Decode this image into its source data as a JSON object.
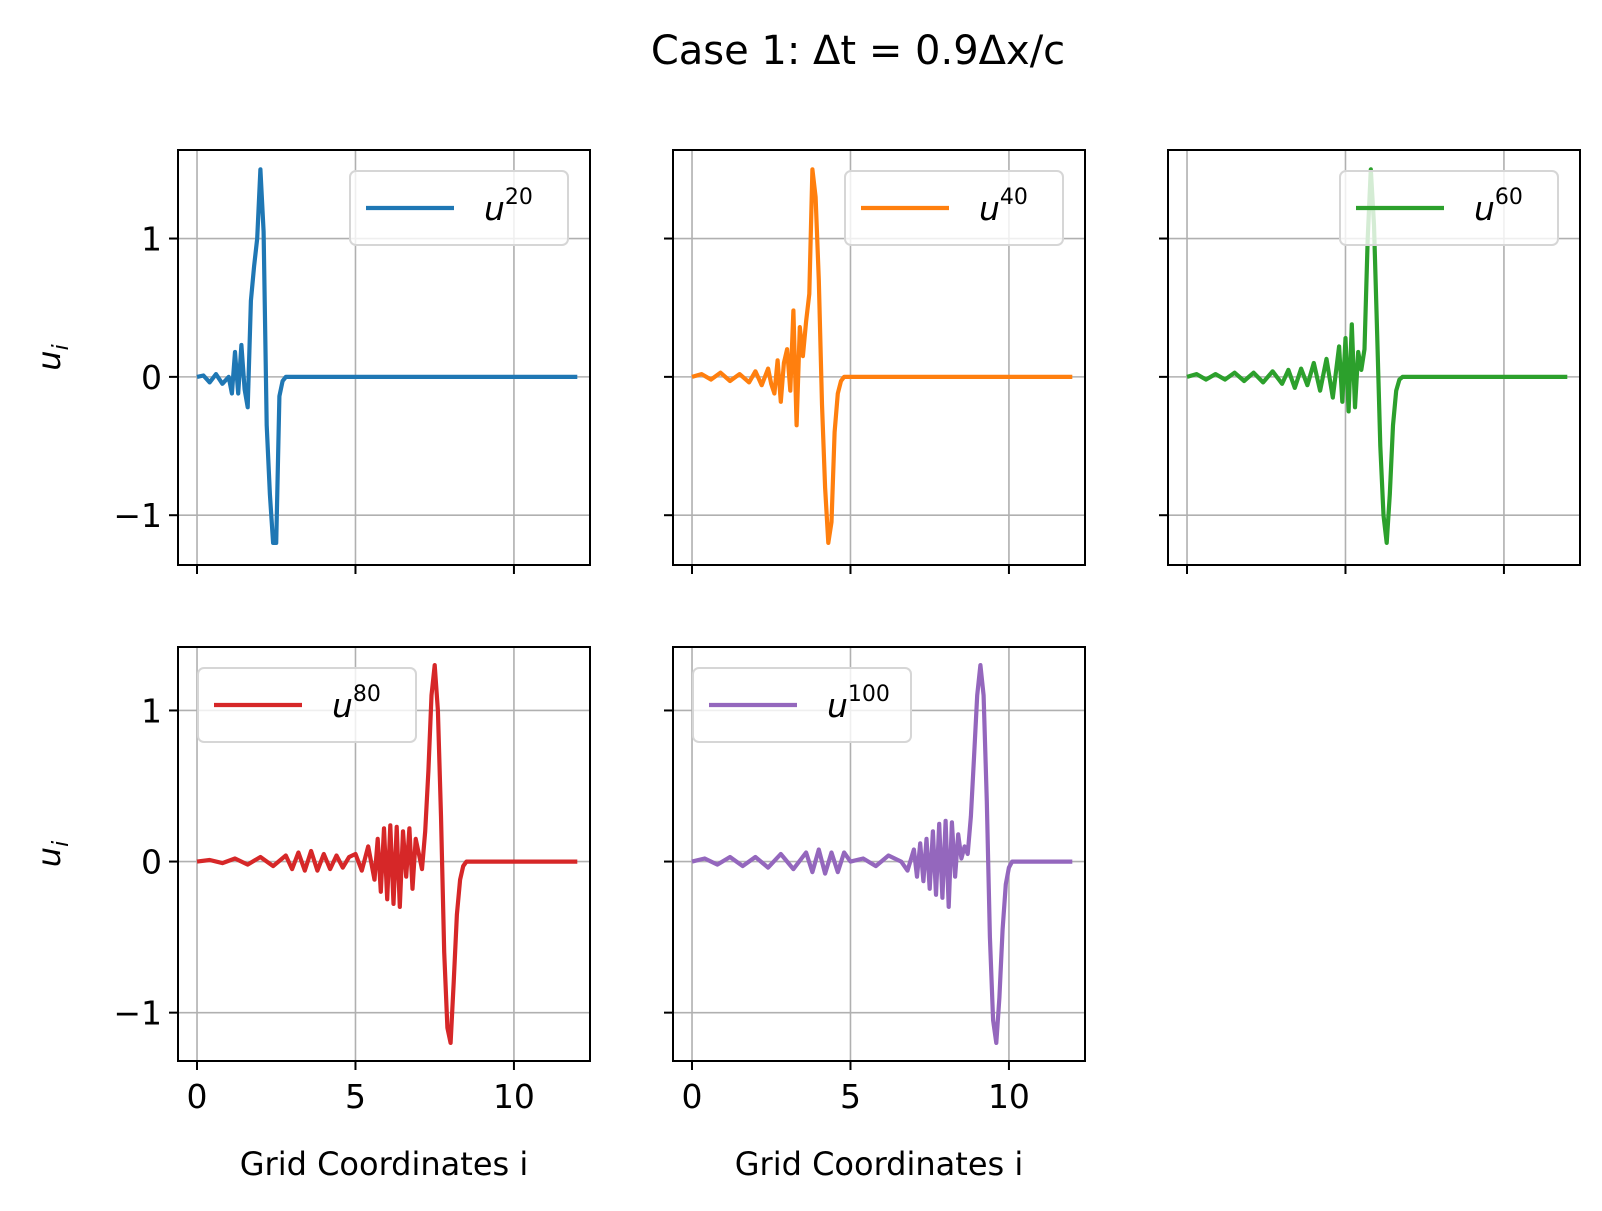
{
  "figure": {
    "title": "Case 1: Δt = 0.9Δx/c"
  },
  "chart_data": [
    {
      "type": "line",
      "legend": "u20",
      "legend_base": "u",
      "legend_sup": "20",
      "legend_loc": "top-right",
      "color": "#1f77b4",
      "ylabel": "u_i",
      "xlabel": "",
      "xlim": [
        -0.6,
        12.4
      ],
      "ylim": [
        -1.36,
        1.64
      ],
      "xticks": [
        0,
        5,
        10
      ],
      "yticks": [
        -1,
        0,
        1
      ],
      "show_xticklabels": false,
      "show_yticklabels": true,
      "grid": true,
      "x": [
        0,
        0.2,
        0.4,
        0.6,
        0.8,
        1.0,
        1.1,
        1.2,
        1.3,
        1.4,
        1.5,
        1.6,
        1.7,
        1.8,
        1.9,
        2.0,
        2.1,
        2.2,
        2.3,
        2.4,
        2.5,
        2.6,
        2.7,
        2.8,
        2.9,
        3.0,
        12.0
      ],
      "values": [
        0,
        0.01,
        -0.04,
        0.02,
        -0.05,
        0.0,
        -0.12,
        0.18,
        -0.12,
        0.23,
        -0.09,
        -0.22,
        0.55,
        0.8,
        1.0,
        1.5,
        1.05,
        -0.35,
        -0.85,
        -1.2,
        -1.2,
        -0.14,
        -0.03,
        0,
        0,
        0,
        0
      ]
    },
    {
      "type": "line",
      "legend": "u40",
      "legend_base": "u",
      "legend_sup": "40",
      "legend_loc": "top-right",
      "color": "#ff7f0e",
      "ylabel": "",
      "xlabel": "",
      "xlim": [
        -0.6,
        12.4
      ],
      "ylim": [
        -1.36,
        1.64
      ],
      "xticks": [
        0,
        5,
        10
      ],
      "yticks": [
        -1,
        0,
        1
      ],
      "show_xticklabels": false,
      "show_yticklabels": false,
      "grid": true,
      "x": [
        0,
        0.3,
        0.6,
        0.9,
        1.2,
        1.5,
        1.8,
        2.0,
        2.2,
        2.4,
        2.5,
        2.6,
        2.7,
        2.8,
        2.9,
        3.0,
        3.1,
        3.2,
        3.3,
        3.4,
        3.5,
        3.6,
        3.7,
        3.8,
        3.9,
        4.0,
        4.1,
        4.2,
        4.3,
        4.4,
        4.5,
        4.6,
        4.7,
        4.8,
        4.9,
        5.0,
        5.2,
        12.0
      ],
      "values": [
        0,
        0.02,
        -0.02,
        0.03,
        -0.03,
        0.02,
        -0.04,
        0.04,
        -0.06,
        0.06,
        -0.05,
        -0.12,
        0.12,
        -0.18,
        0.1,
        0.2,
        -0.1,
        0.48,
        -0.35,
        0.36,
        0.15,
        0.4,
        0.6,
        1.5,
        1.3,
        0.7,
        -0.2,
        -0.8,
        -1.2,
        -1.05,
        -0.4,
        -0.12,
        -0.03,
        0,
        0,
        0,
        0,
        0
      ]
    },
    {
      "type": "line",
      "legend": "u60",
      "legend_base": "u",
      "legend_sup": "60",
      "legend_loc": "top-right",
      "color": "#2ca02c",
      "ylabel": "",
      "xlabel": "",
      "xlim": [
        -0.6,
        12.4
      ],
      "ylim": [
        -1.36,
        1.64
      ],
      "xticks": [
        0,
        5,
        10
      ],
      "yticks": [
        -1,
        0,
        1
      ],
      "show_xticklabels": false,
      "show_yticklabels": false,
      "grid": true,
      "x": [
        0,
        0.3,
        0.6,
        0.9,
        1.2,
        1.5,
        1.8,
        2.1,
        2.4,
        2.7,
        3.0,
        3.2,
        3.4,
        3.6,
        3.8,
        4.0,
        4.2,
        4.4,
        4.6,
        4.8,
        4.9,
        5.0,
        5.1,
        5.2,
        5.3,
        5.4,
        5.5,
        5.6,
        5.7,
        5.8,
        5.9,
        6.0,
        6.1,
        6.2,
        6.3,
        6.4,
        6.5,
        6.6,
        6.7,
        6.8,
        6.9,
        7.0,
        7.2,
        12.0
      ],
      "values": [
        0,
        0.02,
        -0.02,
        0.02,
        -0.02,
        0.03,
        -0.03,
        0.03,
        -0.04,
        0.04,
        -0.05,
        0.05,
        -0.08,
        0.06,
        -0.06,
        0.1,
        -0.1,
        0.13,
        -0.15,
        0.22,
        -0.18,
        0.28,
        -0.25,
        0.38,
        -0.22,
        0.18,
        0.05,
        0.2,
        1.0,
        1.5,
        1.1,
        0.3,
        -0.5,
        -1.0,
        -1.2,
        -0.85,
        -0.35,
        -0.1,
        -0.02,
        0,
        0,
        0,
        0,
        0
      ]
    },
    {
      "type": "line",
      "legend": "u80",
      "legend_base": "u",
      "legend_sup": "80",
      "legend_loc": "top-left",
      "color": "#d62728",
      "ylabel": "u_i",
      "xlabel": "Grid Coordinates i",
      "xlim": [
        -0.6,
        12.4
      ],
      "ylim": [
        -1.32,
        1.42
      ],
      "xticks": [
        0,
        5,
        10
      ],
      "yticks": [
        -1,
        0,
        1
      ],
      "show_xticklabels": true,
      "show_yticklabels": true,
      "grid": true,
      "x": [
        0,
        0.4,
        0.8,
        1.2,
        1.6,
        2.0,
        2.4,
        2.8,
        3.0,
        3.2,
        3.4,
        3.6,
        3.8,
        4.0,
        4.2,
        4.4,
        4.6,
        4.8,
        5.0,
        5.2,
        5.4,
        5.6,
        5.7,
        5.8,
        5.9,
        6.0,
        6.1,
        6.2,
        6.3,
        6.4,
        6.5,
        6.6,
        6.7,
        6.8,
        6.9,
        7.0,
        7.1,
        7.2,
        7.3,
        7.4,
        7.5,
        7.6,
        7.7,
        7.8,
        7.9,
        8.0,
        8.1,
        8.2,
        8.3,
        8.4,
        8.5,
        8.7,
        12.0
      ],
      "values": [
        0,
        0.01,
        -0.01,
        0.02,
        -0.02,
        0.03,
        -0.03,
        0.04,
        -0.05,
        0.06,
        -0.06,
        0.07,
        -0.06,
        0.05,
        -0.05,
        0.04,
        -0.04,
        0.03,
        0.05,
        -0.06,
        0.1,
        -0.12,
        0.15,
        -0.2,
        0.22,
        -0.25,
        0.24,
        -0.28,
        0.23,
        -0.3,
        0.2,
        -0.1,
        0.22,
        -0.18,
        0.15,
        0.05,
        -0.05,
        0.2,
        0.6,
        1.1,
        1.3,
        1.0,
        0.3,
        -0.6,
        -1.1,
        -1.2,
        -0.8,
        -0.35,
        -0.12,
        -0.03,
        0,
        0,
        0
      ]
    },
    {
      "type": "line",
      "legend": "u100",
      "legend_base": "u",
      "legend_sup": "100",
      "legend_loc": "top-left",
      "color": "#9467bd",
      "ylabel": "",
      "xlabel": "Grid Coordinates i",
      "xlim": [
        -0.6,
        12.4
      ],
      "ylim": [
        -1.32,
        1.42
      ],
      "xticks": [
        0,
        5,
        10
      ],
      "yticks": [
        -1,
        0,
        1
      ],
      "show_xticklabels": true,
      "show_yticklabels": false,
      "grid": true,
      "x": [
        0,
        0.4,
        0.8,
        1.2,
        1.6,
        2.0,
        2.4,
        2.8,
        3.2,
        3.6,
        3.8,
        4.0,
        4.2,
        4.4,
        4.6,
        4.8,
        5.0,
        5.4,
        5.8,
        6.2,
        6.6,
        6.8,
        7.0,
        7.1,
        7.2,
        7.3,
        7.4,
        7.5,
        7.6,
        7.7,
        7.8,
        7.9,
        8.0,
        8.1,
        8.2,
        8.3,
        8.4,
        8.5,
        8.6,
        8.7,
        8.8,
        8.9,
        9.0,
        9.1,
        9.2,
        9.3,
        9.4,
        9.5,
        9.6,
        9.7,
        9.8,
        9.9,
        10.0,
        10.1,
        10.2,
        10.3,
        10.5,
        10.8,
        12.0
      ],
      "values": [
        0,
        0.02,
        -0.02,
        0.03,
        -0.03,
        0.03,
        -0.04,
        0.05,
        -0.05,
        0.06,
        -0.07,
        0.08,
        -0.08,
        0.06,
        -0.07,
        0.06,
        0.0,
        0.02,
        -0.03,
        0.04,
        0.0,
        -0.06,
        0.08,
        -0.1,
        0.12,
        -0.13,
        0.15,
        -0.18,
        0.2,
        -0.22,
        0.25,
        -0.24,
        0.27,
        -0.3,
        0.26,
        -0.1,
        0.18,
        0.02,
        0.1,
        0.05,
        0.3,
        0.7,
        1.1,
        1.3,
        1.1,
        0.4,
        -0.5,
        -1.05,
        -1.2,
        -0.9,
        -0.45,
        -0.15,
        -0.04,
        0,
        0,
        0,
        0,
        0,
        0
      ]
    }
  ]
}
